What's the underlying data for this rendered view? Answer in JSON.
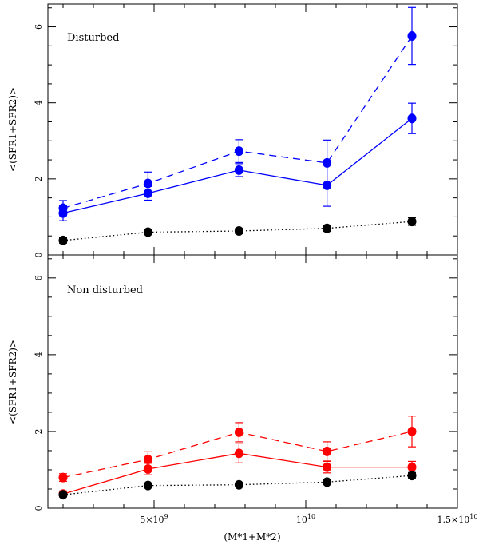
{
  "chart_data": {
    "type": "line",
    "xlabel": "(M*1+M*2)",
    "xlim": [
      1500000000,
      15000000000
    ],
    "x_tick_labels": [
      {
        "value": 5000000000,
        "base": "5×10",
        "exp": "9"
      },
      {
        "value": 10000000000,
        "base": "10",
        "exp": "10"
      },
      {
        "value": 15000000000,
        "base": "1.5×10",
        "exp": "10"
      }
    ],
    "panels": [
      {
        "label": "Disturbed",
        "ylabel": "<(SFR1+SFR2)>",
        "ylim": [
          0,
          6.6
        ],
        "y_ticks": [
          0,
          2,
          4,
          6
        ],
        "x": [
          2000000000,
          4800000000,
          7800000000,
          10700000000,
          13500000000
        ],
        "series": [
          {
            "name": "dashed",
            "color": "#0000ff",
            "style": "dashed",
            "values": [
              1.23,
              1.88,
              2.73,
              2.42,
              5.76
            ],
            "errors": [
              0.2,
              0.3,
              0.3,
              0.6,
              0.75
            ]
          },
          {
            "name": "solid",
            "color": "#0000ff",
            "style": "solid",
            "values": [
              1.1,
              1.62,
              2.23,
              1.83,
              3.59
            ],
            "errors": [
              0.2,
              0.18,
              0.17,
              0.55,
              0.4
            ]
          },
          {
            "name": "dotted",
            "color": "#000000",
            "style": "dotted",
            "values": [
              0.38,
              0.6,
              0.63,
              0.7,
              0.88
            ],
            "errors": [
              0.07,
              0.07,
              0.07,
              0.08,
              0.1
            ]
          }
        ]
      },
      {
        "label": "Non disturbed",
        "ylabel": "<(SFR1+SFR2)>",
        "ylim": [
          0,
          6.6
        ],
        "y_ticks": [
          0,
          2,
          4,
          6
        ],
        "x": [
          2000000000,
          4800000000,
          7800000000,
          10700000000,
          13500000000
        ],
        "series": [
          {
            "name": "dashed",
            "color": "#ff0000",
            "style": "dashed",
            "values": [
              0.8,
              1.27,
              1.98,
              1.48,
              2.0
            ],
            "errors": [
              0.1,
              0.2,
              0.25,
              0.25,
              0.4
            ]
          },
          {
            "name": "solid",
            "color": "#ff0000",
            "style": "solid",
            "values": [
              0.37,
              1.02,
              1.43,
              1.07,
              1.07
            ],
            "errors": [
              0.08,
              0.15,
              0.25,
              0.15,
              0.15
            ]
          },
          {
            "name": "dotted",
            "color": "#000000",
            "style": "dotted",
            "values": [
              0.35,
              0.59,
              0.61,
              0.68,
              0.85
            ],
            "errors": [
              0.05,
              0.05,
              0.05,
              0.06,
              0.08
            ]
          }
        ]
      }
    ]
  }
}
